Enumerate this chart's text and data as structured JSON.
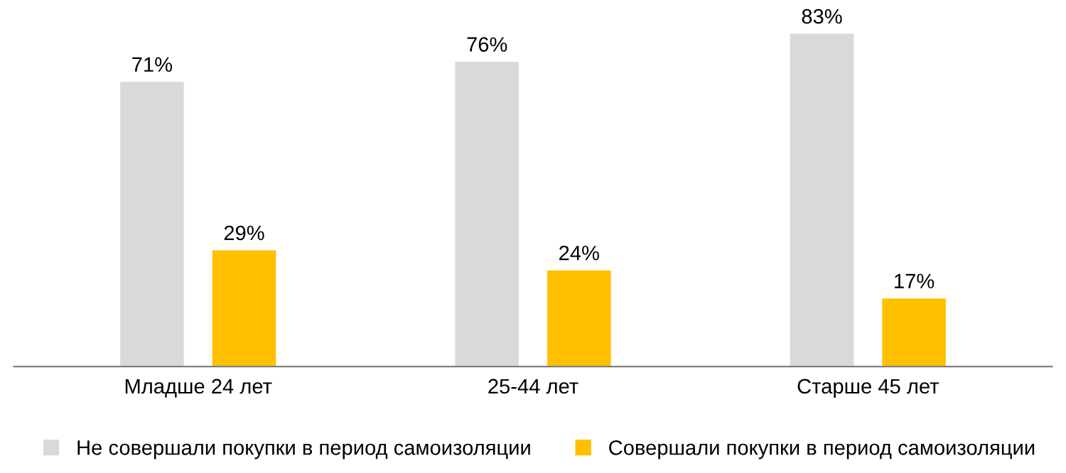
{
  "chart_data": {
    "type": "bar",
    "categories": [
      "Младше 24 лет",
      "25-44 лет",
      "Старше 45 лет"
    ],
    "series": [
      {
        "name": "Не совершали покупки в период самоизоляции",
        "color": "#d9d9d9",
        "values": [
          71,
          76,
          83
        ],
        "value_labels": [
          "71%",
          "76%",
          "83%"
        ]
      },
      {
        "name": "Совершали покупки в период самоизоляции",
        "color": "#ffc000",
        "values": [
          29,
          24,
          17
        ],
        "value_labels": [
          "29%",
          "24%",
          "17%"
        ]
      }
    ],
    "legend": "bottom",
    "grid": false
  }
}
